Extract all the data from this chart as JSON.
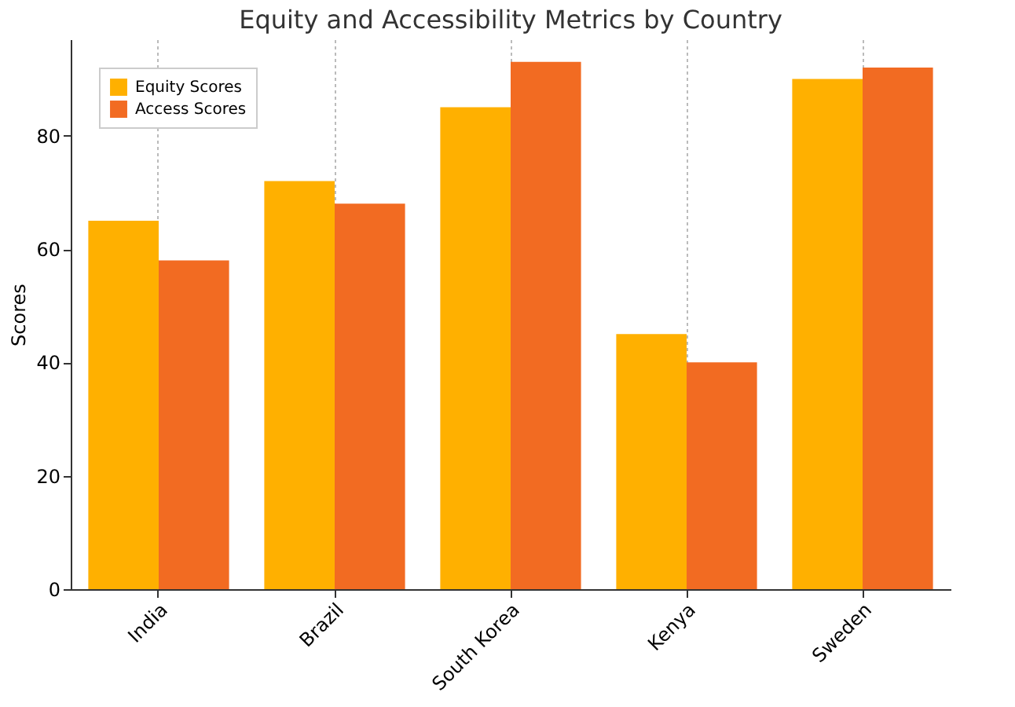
{
  "chart_data": {
    "type": "bar",
    "title": "Equity and Accessibility Metrics by Country",
    "ylabel": "Scores",
    "categories": [
      "India",
      "Brazil",
      "South Korea",
      "Kenya",
      "Sweden"
    ],
    "series": [
      {
        "name": "Equity Scores",
        "color": "#ffb000",
        "values": [
          65,
          72,
          85,
          45,
          90
        ]
      },
      {
        "name": "Access Scores",
        "color": "#f26b22",
        "values": [
          58,
          68,
          93,
          40,
          92
        ]
      }
    ],
    "ylim": [
      0,
      97
    ],
    "yticks": [
      0,
      20,
      40,
      60,
      80
    ],
    "grid": "x",
    "legend": "top left"
  }
}
